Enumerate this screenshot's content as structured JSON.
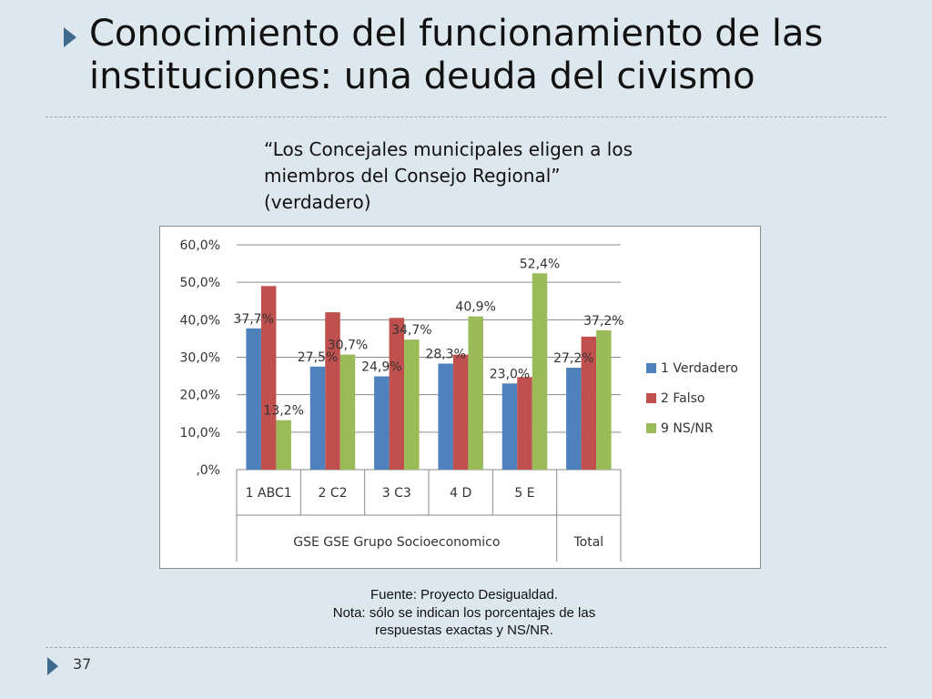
{
  "slide": {
    "title": "Conocimiento del funcionamiento de las instituciones: una deuda del civismo",
    "subtitle": "“Los Concejales municipales eligen a los miembros del Consejo Regional” (verdadero)",
    "source": "Fuente: Proyecto Desigualdad.",
    "note_line1": "Nota: sólo se indican los porcentajes de las",
    "note_line2": "respuestas exactas y NS/NR.",
    "page_number": "37"
  },
  "chart_data": {
    "type": "bar",
    "categories": [
      "1 ABC1",
      "2 C2",
      "3 C3",
      "4 D",
      "5 E",
      "Total"
    ],
    "group_labels": [
      "GSE GSE Grupo Socioeconomico",
      "Total"
    ],
    "series": [
      {
        "name": "1 Verdadero",
        "color": "#4f81bd",
        "values": [
          37.7,
          27.5,
          24.9,
          28.3,
          23.0,
          27.2
        ],
        "labels": [
          "37,7%",
          "27,5%",
          "24,9%",
          "28,3%",
          "23,0%",
          "27,2%"
        ]
      },
      {
        "name": "2 Falso",
        "color": "#c0504d",
        "values": [
          49.0,
          42.0,
          40.5,
          30.7,
          24.7,
          35.5
        ],
        "labels": [
          null,
          null,
          null,
          null,
          null,
          null
        ]
      },
      {
        "name": "9 NS/NR",
        "color": "#9bbb59",
        "values": [
          13.2,
          30.7,
          34.7,
          40.9,
          52.4,
          37.2
        ],
        "labels": [
          "13,2%",
          "30,7%",
          "34,7%",
          "40,9%",
          "52,4%",
          "37,2%"
        ]
      }
    ],
    "ylim": [
      0,
      60
    ],
    "yticks": [
      0,
      10,
      20,
      30,
      40,
      50,
      60
    ],
    "ytick_labels": [
      ",0%",
      "10,0%",
      "20,0%",
      "30,0%",
      "40,0%",
      "50,0%",
      "60,0%"
    ],
    "grid": true,
    "legend": "right"
  }
}
